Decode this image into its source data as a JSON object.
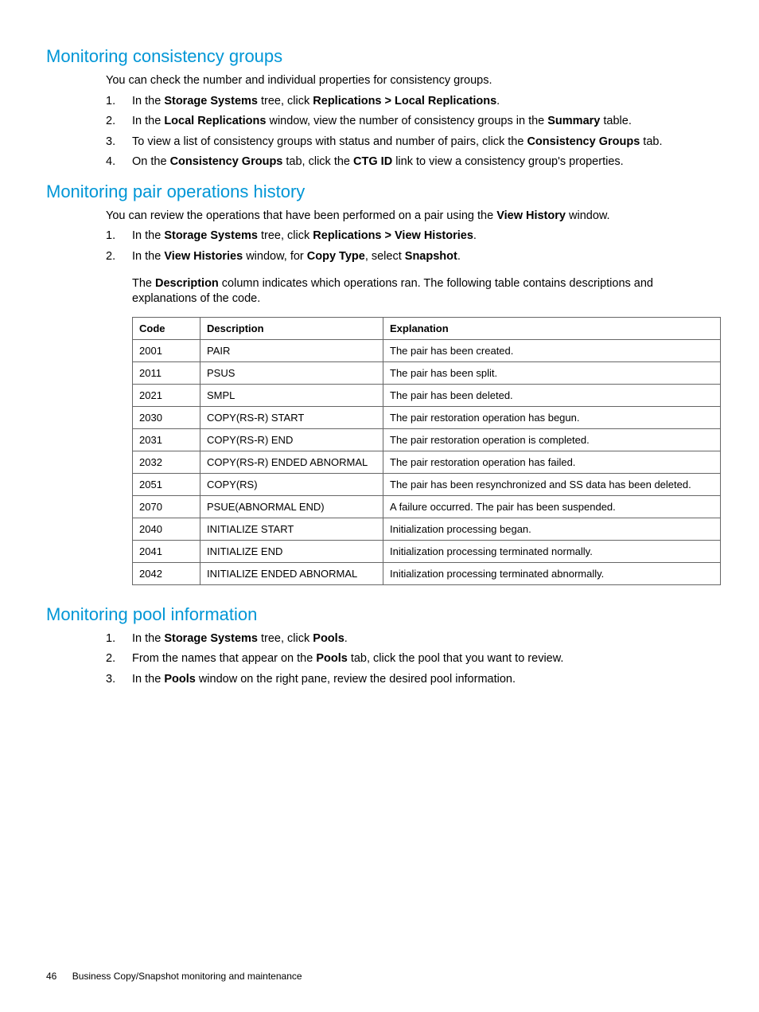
{
  "section1": {
    "heading": "Monitoring consistency groups",
    "intro": "You can check the number and individual properties for consistency groups.",
    "steps": [
      {
        "num": "1.",
        "parts": [
          "In the ",
          {
            "b": "Storage Systems"
          },
          " tree, click ",
          {
            "b": "Replications > Local Replications"
          },
          "."
        ]
      },
      {
        "num": "2.",
        "parts": [
          "In the ",
          {
            "b": "Local Replications"
          },
          " window, view the number of consistency groups in the ",
          {
            "b": "Summary"
          },
          " table."
        ]
      },
      {
        "num": "3.",
        "parts": [
          "To view a list of consistency groups with status and number of pairs, click the ",
          {
            "b": "Consistency Groups"
          },
          " tab."
        ]
      },
      {
        "num": "4.",
        "parts": [
          "On the ",
          {
            "b": "Consistency Groups"
          },
          " tab, click the ",
          {
            "b": "CTG ID"
          },
          " link to view a consistency group's properties."
        ]
      }
    ]
  },
  "section2": {
    "heading": "Monitoring pair operations history",
    "intro_parts": [
      "You can review the operations that have been performed on a pair using the ",
      {
        "b": "View History"
      },
      " window."
    ],
    "steps": [
      {
        "num": "1.",
        "parts": [
          "In the ",
          {
            "b": "Storage Systems"
          },
          " tree, click ",
          {
            "b": "Replications > View Histories"
          },
          "."
        ]
      },
      {
        "num": "2.",
        "parts": [
          "In the ",
          {
            "b": "View Histories"
          },
          " window, for ",
          {
            "b": "Copy Type"
          },
          ", select ",
          {
            "b": "Snapshot"
          },
          "."
        ]
      }
    ],
    "after_parts": [
      "The ",
      {
        "b": "Description"
      },
      " column indicates which operations ran. The following table contains descriptions and explanations of the code."
    ],
    "table": {
      "headers": [
        "Code",
        "Description",
        "Explanation"
      ],
      "rows": [
        [
          "2001",
          "PAIR",
          "The pair has been created."
        ],
        [
          "2011",
          "PSUS",
          "The pair has been split."
        ],
        [
          "2021",
          "SMPL",
          "The pair has been deleted."
        ],
        [
          "2030",
          "COPY(RS-R) START",
          "The pair restoration operation has begun."
        ],
        [
          "2031",
          "COPY(RS-R) END",
          "The pair restoration operation is completed."
        ],
        [
          "2032",
          "COPY(RS-R) ENDED ABNORMAL",
          "The pair restoration operation has failed."
        ],
        [
          "2051",
          "COPY(RS)",
          "The pair has been resynchronized and SS data has been deleted."
        ],
        [
          "2070",
          "PSUE(ABNORMAL END)",
          "A failure occurred. The pair has been suspended."
        ],
        [
          "2040",
          "INITIALIZE START",
          "Initialization processing began."
        ],
        [
          "2041",
          "INITIALIZE END",
          "Initialization processing terminated normally."
        ],
        [
          "2042",
          "INITIALIZE ENDED ABNORMAL",
          "Initialization processing terminated abnormally."
        ]
      ]
    }
  },
  "section3": {
    "heading": "Monitoring pool information",
    "steps": [
      {
        "num": "1.",
        "parts": [
          "In the ",
          {
            "b": "Storage Systems"
          },
          " tree, click ",
          {
            "b": "Pools"
          },
          "."
        ]
      },
      {
        "num": "2.",
        "parts": [
          "From the names that appear on the ",
          {
            "b": "Pools"
          },
          " tab, click the pool that you want to review."
        ]
      },
      {
        "num": "3.",
        "parts": [
          "In the ",
          {
            "b": "Pools"
          },
          " window on the right pane, review the desired pool information."
        ]
      }
    ]
  },
  "footer": {
    "page": "46",
    "title": "Business Copy/Snapshot monitoring and maintenance"
  }
}
